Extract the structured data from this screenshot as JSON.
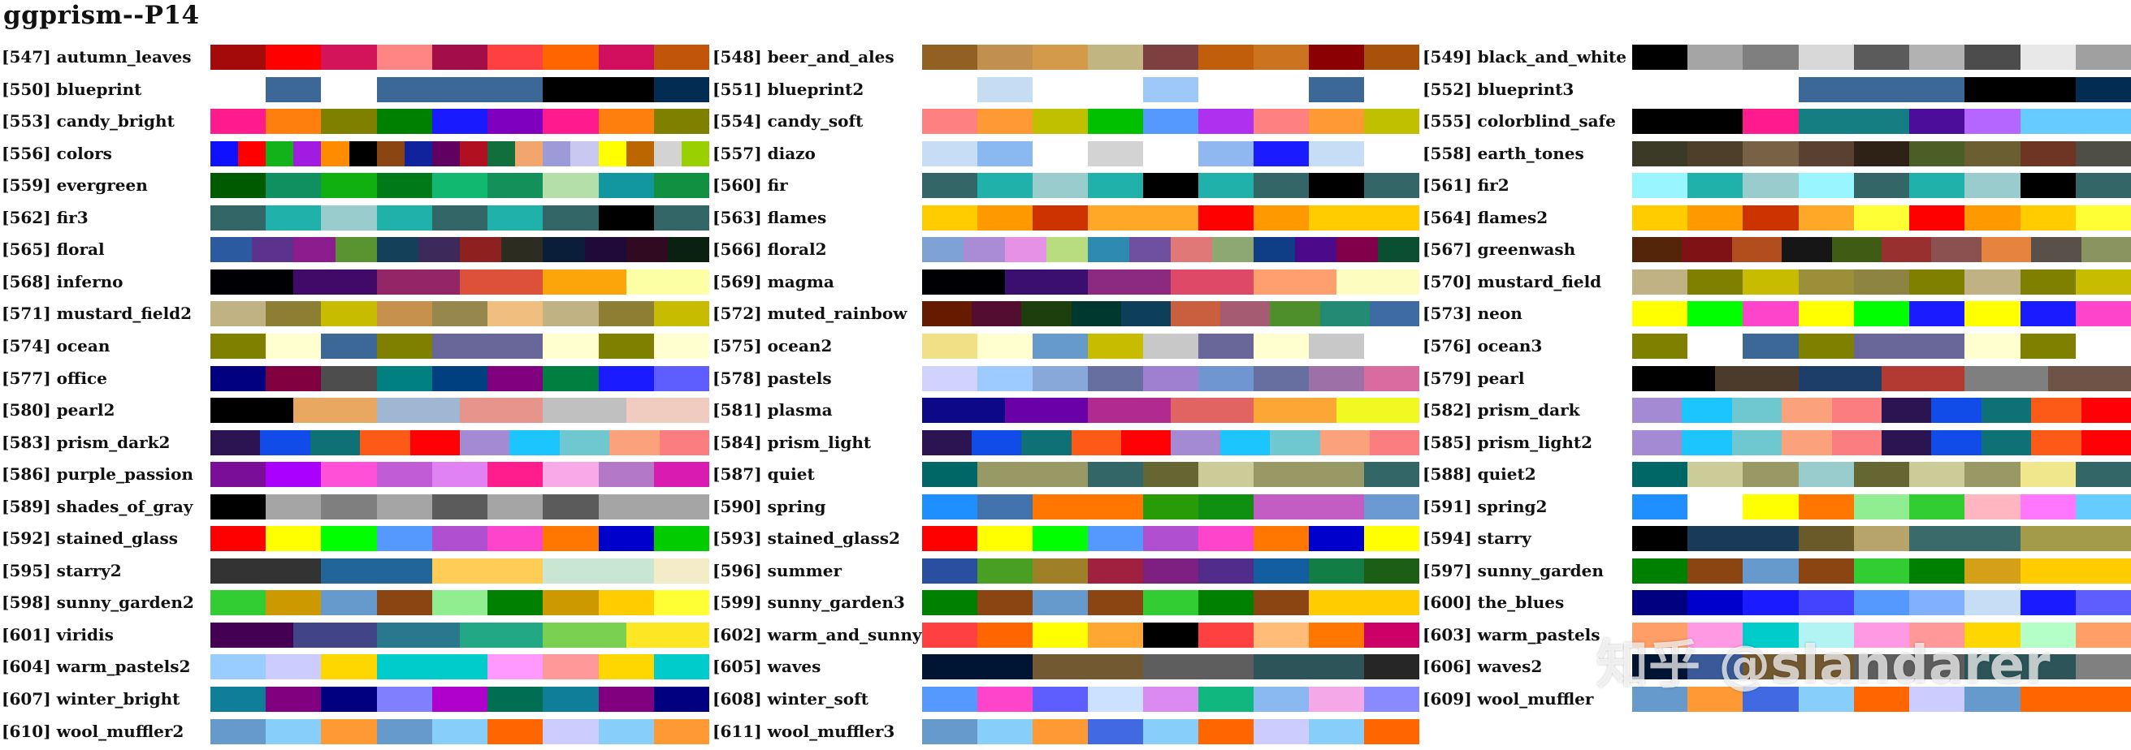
{
  "title": "ggprism--P14",
  "watermark": "知乎 @slandarer",
  "palettes": [
    {
      "label": "[547] autumn_leaves",
      "colors": [
        "#A50A0A",
        "#FF0000",
        "#D4145A",
        "#FF8484",
        "#A30D48",
        "#FF4040",
        "#FF6600",
        "#D10F5E",
        "#C1560B"
      ]
    },
    {
      "label": "[548] beer_and_ales",
      "colors": [
        "#936024",
        "#C1904E",
        "#D39A4A",
        "#C1B682",
        "#7D3F3F",
        "#C05E0B",
        "#CC7320",
        "#8B0000",
        "#A8510B"
      ]
    },
    {
      "label": "[549] black_and_white",
      "colors": [
        "#000000",
        "#A5A5A5",
        "#7F7F7F",
        "#D8D8D8",
        "#5B5B5B",
        "#B2B2B2",
        "#4C4C4C",
        "#E8E8E8",
        "#A0A0A0"
      ]
    },
    {
      "label": "[550] blueprint",
      "colors": [
        "#FFFFFF",
        "#3C6898",
        "#FFFFFF",
        "#3C6898",
        "#3C6898",
        "#3C6898",
        "#000000",
        "#000000",
        "#032C52"
      ]
    },
    {
      "label": "[551] blueprint2",
      "colors": [
        "#FFFFFF",
        "#C5DCF3",
        "#FFFFFF",
        "#FFFFFF",
        "#9EC8F8",
        "#FFFFFF",
        "#FFFFFF",
        "#3C6898",
        "#FFFFFF"
      ]
    },
    {
      "label": "[552] blueprint3",
      "colors": [
        "#FFFFFF",
        "#FFFFFF",
        "#FFFFFF",
        "#3C6898",
        "#3C6898",
        "#3C6898",
        "#000000",
        "#000000",
        "#032C52"
      ]
    },
    {
      "label": "[553] candy_bright",
      "colors": [
        "#FF1B8D",
        "#FF7F0E",
        "#808000",
        "#008000",
        "#1A1AFF",
        "#8000C0",
        "#FF1B8D",
        "#FF7F0E",
        "#808000"
      ]
    },
    {
      "label": "[554] candy_soft",
      "colors": [
        "#FF8080",
        "#FF9933",
        "#C0C000",
        "#00C000",
        "#5599FF",
        "#B030F0",
        "#FF8080",
        "#FF9933",
        "#C0C000"
      ]
    },
    {
      "label": "[555] colorblind_safe",
      "colors": [
        "#000000",
        "#000000",
        "#FF1B8D",
        "#147E82",
        "#147E82",
        "#4C0D9A",
        "#B566FF",
        "#66CCFF",
        "#66CCFF"
      ]
    },
    {
      "label": "[556] colors",
      "colors": [
        "#0F10FF",
        "#FF0000",
        "#11B21A",
        "#A11BE0",
        "#FF8C00",
        "#000000",
        "#8B4513",
        "#10239C",
        "#600060",
        "#B01020",
        "#116E3D",
        "#F2A56C",
        "#9C9BD8",
        "#C8C8F0",
        "#FFFF00",
        "#BB6600",
        "#D3D3D3",
        "#99D000"
      ]
    },
    {
      "label": "[557] diazo",
      "colors": [
        "#C7DDF5",
        "#8AB9F1",
        "#FFFFFF",
        "#D3D3D3",
        "#FFFFFF",
        "#90B8F0",
        "#1B1BFF",
        "#C5DDF5",
        "#FFFFFF"
      ]
    },
    {
      "label": "[558] earth_tones",
      "colors": [
        "#3A3A26",
        "#4E3F2A",
        "#786144",
        "#5A4031",
        "#2E2217",
        "#4B5E26",
        "#6B5E30",
        "#6E3524",
        "#4E4E46"
      ]
    },
    {
      "label": "[559] evergreen",
      "colors": [
        "#005A00",
        "#109060",
        "#10B010",
        "#007A18",
        "#10B870",
        "#14915B",
        "#B5DFA8",
        "#1296A0",
        "#109040"
      ]
    },
    {
      "label": "[560] fir",
      "colors": [
        "#336666",
        "#20B2AA",
        "#99CCCC",
        "#20B2AA",
        "#000000",
        "#20B2AA",
        "#336666",
        "#000000",
        "#336666"
      ]
    },
    {
      "label": "[561] fir2",
      "colors": [
        "#99F5FF",
        "#20B2AA",
        "#99CCCC",
        "#99F5FF",
        "#336666",
        "#20B2AA",
        "#99CCCC",
        "#000000",
        "#336666"
      ]
    },
    {
      "label": "[562] fir3",
      "colors": [
        "#336666",
        "#20B2AA",
        "#99CCCC",
        "#20B2AA",
        "#336666",
        "#20B2AA",
        "#336666",
        "#000000",
        "#336666"
      ]
    },
    {
      "label": "[563] flames",
      "colors": [
        "#FFCC00",
        "#FF9900",
        "#CC3300",
        "#FFA726",
        "#FFA726",
        "#FF0000",
        "#FF9900",
        "#FFCC00",
        "#FFCC00"
      ]
    },
    {
      "label": "[564] flames2",
      "colors": [
        "#FFCC00",
        "#FF9900",
        "#CC3300",
        "#FFA726",
        "#FFFF33",
        "#FF0000",
        "#FF9900",
        "#FFCC00",
        "#FFFF33"
      ]
    },
    {
      "label": "[565] floral",
      "colors": [
        "#2B5AA0",
        "#5C328F",
        "#8D1D8F",
        "#5A9430",
        "#14405A",
        "#3D2A5A",
        "#8F2020",
        "#2C2C20",
        "#0A1E3A",
        "#200A3A",
        "#300A20",
        "#0A2010"
      ]
    },
    {
      "label": "[566] floral2",
      "colors": [
        "#7EA2D4",
        "#A98BD6",
        "#E691E6",
        "#B8DD7F",
        "#2F8AB2",
        "#6F4F9F",
        "#E07878",
        "#8EA872",
        "#103E86",
        "#4A0A8A",
        "#80004A",
        "#0A5030"
      ]
    },
    {
      "label": "[567] greenwash",
      "colors": [
        "#55250A",
        "#7F1214",
        "#B24D1E",
        "#161616",
        "#405B14",
        "#993030",
        "#8B5050",
        "#E6843F",
        "#5A504A",
        "#8A9460"
      ]
    },
    {
      "label": "[568] inferno",
      "colors": [
        "#000004",
        "#420A68",
        "#932667",
        "#DD513A",
        "#FCA50A",
        "#FCFFA4"
      ]
    },
    {
      "label": "[569] magma",
      "colors": [
        "#000004",
        "#3B0F70",
        "#8C2981",
        "#DE4968",
        "#FE9F6D",
        "#FCFDBF"
      ]
    },
    {
      "label": "[570] mustard_field",
      "colors": [
        "#C0B283",
        "#808000",
        "#C8BC00",
        "#9C8F3A",
        "#8C8440",
        "#808000",
        "#C0B283",
        "#808000",
        "#C8BC00"
      ]
    },
    {
      "label": "[571] mustard_field2",
      "colors": [
        "#C0B283",
        "#8C7E33",
        "#C8BC00",
        "#C6914C",
        "#96874D",
        "#F0BF7F",
        "#C0B283",
        "#8C7E33",
        "#C8BC00"
      ]
    },
    {
      "label": "[572] muted_rainbow",
      "colors": [
        "#661A00",
        "#530D30",
        "#1C3F0D",
        "#003830",
        "#0E3F5A",
        "#C95F3E",
        "#A55C73",
        "#4E8F2C",
        "#238B73",
        "#3F6BA5"
      ]
    },
    {
      "label": "[573] neon",
      "colors": [
        "#FFFF00",
        "#00FF00",
        "#FF44CC",
        "#FFFF00",
        "#00FF00",
        "#1B1BFF",
        "#FFFF00",
        "#1B1BFF",
        "#FF44CC"
      ]
    },
    {
      "label": "[574] ocean",
      "colors": [
        "#808000",
        "#FFFFD0",
        "#3C6898",
        "#808000",
        "#696699",
        "#696699",
        "#FFFFD0",
        "#808000",
        "#FFFFD0"
      ]
    },
    {
      "label": "[575] ocean2",
      "colors": [
        "#F2E087",
        "#FFFFD0",
        "#6699CC",
        "#C8BC00",
        "#C8C8C8",
        "#696699",
        "#FFFFD0",
        "#C8C8C8",
        "#FFFFFF"
      ]
    },
    {
      "label": "[576] ocean3",
      "colors": [
        "#808000",
        "#FFFFFF",
        "#3C6898",
        "#808000",
        "#696699",
        "#696699",
        "#FFFFD0",
        "#808000",
        "#FFFFFF"
      ]
    },
    {
      "label": "[577] office",
      "colors": [
        "#000080",
        "#800040",
        "#4D4D4D",
        "#008080",
        "#004080",
        "#800080",
        "#008040",
        "#1B1BFF",
        "#5E5EFF"
      ]
    },
    {
      "label": "[578] pastels",
      "colors": [
        "#D2D2FF",
        "#9ECBFF",
        "#88A8DA",
        "#676FA0",
        "#9F80D0",
        "#6F96D0",
        "#676FA0",
        "#9D70A8",
        "#D96BA0"
      ]
    },
    {
      "label": "[579] pearl",
      "colors": [
        "#000000",
        "#4C3A2B",
        "#1E3E6A",
        "#B33A33",
        "#7F7F7F",
        "#6E5346"
      ]
    },
    {
      "label": "[580] pearl2",
      "colors": [
        "#000000",
        "#E8A862",
        "#9FB7D3",
        "#E7958C",
        "#C0C0C0",
        "#F0CCC0"
      ]
    },
    {
      "label": "[581] plasma",
      "colors": [
        "#0D0887",
        "#6A00A8",
        "#B12A90",
        "#E16462",
        "#FCA636",
        "#F0F921"
      ]
    },
    {
      "label": "[582] prism_dark",
      "colors": [
        "#A48AD3",
        "#1CC5FE",
        "#6FC7CF",
        "#FBA27D",
        "#FB7D80",
        "#2C1453",
        "#114CE8",
        "#0E7175",
        "#FD5917",
        "#FF0005"
      ]
    },
    {
      "label": "[583] prism_dark2",
      "colors": [
        "#2C1453",
        "#114CE8",
        "#0E7175",
        "#FD5917",
        "#FF0005",
        "#A48AD3",
        "#1CC5FE",
        "#6FC7CF",
        "#FBA27D",
        "#FB7D80"
      ]
    },
    {
      "label": "[584] prism_light",
      "colors": [
        "#2C1453",
        "#114CE8",
        "#0E7175",
        "#FD5917",
        "#FF0005",
        "#A48AD3",
        "#1CC5FE",
        "#6FC7CF",
        "#FBA27D",
        "#FB7D80"
      ]
    },
    {
      "label": "[585] prism_light2",
      "colors": [
        "#A48AD3",
        "#1CC5FE",
        "#6FC7CF",
        "#FBA27D",
        "#FB7D80",
        "#2C1453",
        "#114CE8",
        "#0E7175",
        "#FD5917",
        "#FF0005"
      ]
    },
    {
      "label": "[586] purple_passion",
      "colors": [
        "#7B0E99",
        "#AA00FF",
        "#FF50D8",
        "#C15BD6",
        "#E082F2",
        "#FF1C8C",
        "#F9A8E8",
        "#B378C8",
        "#D91BB1"
      ]
    },
    {
      "label": "[587] quiet",
      "colors": [
        "#006666",
        "#999966",
        "#999966",
        "#336666",
        "#666633",
        "#CCCC99",
        "#999966",
        "#999966",
        "#336666"
      ]
    },
    {
      "label": "[588] quiet2",
      "colors": [
        "#006666",
        "#CCCC99",
        "#999966",
        "#99CCCC",
        "#666633",
        "#CCCC99",
        "#999966",
        "#F0E68C",
        "#336666"
      ]
    },
    {
      "label": "[589] shades_of_gray",
      "colors": [
        "#000000",
        "#A5A5A5",
        "#7F7F7F",
        "#A5A5A5",
        "#5B5B5B",
        "#A5A5A5",
        "#5B5B5B",
        "#A5A5A5",
        "#A5A5A5"
      ]
    },
    {
      "label": "[590] spring",
      "colors": [
        "#1F8FFF",
        "#4273AD",
        "#FF7700",
        "#FF7700",
        "#289C08",
        "#109010",
        "#C35CC3",
        "#C35CC3",
        "#6B9AD2"
      ]
    },
    {
      "label": "[591] spring2",
      "colors": [
        "#1F8FFF",
        "#FFFFFF",
        "#FFFF00",
        "#FF7700",
        "#90EE90",
        "#32CD32",
        "#FFB6C1",
        "#FF77FF",
        "#66CCFF"
      ]
    },
    {
      "label": "[592] stained_glass",
      "colors": [
        "#FF0000",
        "#FFFF00",
        "#00FF00",
        "#5599FF",
        "#B050D0",
        "#FF44CC",
        "#FF7700",
        "#0000CC",
        "#00CC00"
      ]
    },
    {
      "label": "[593] stained_glass2",
      "colors": [
        "#FF0000",
        "#FFFF00",
        "#00FF00",
        "#5599FF",
        "#B050D0",
        "#FF44CC",
        "#FF7700",
        "#0000CC",
        "#FFFF00"
      ]
    },
    {
      "label": "[594] starry",
      "colors": [
        "#000000",
        "#1A3A5A",
        "#1A3A5A",
        "#6A5A2A",
        "#B7A46A",
        "#3A6A6A",
        "#3A6A6A",
        "#A39A4A",
        "#A39A4A"
      ]
    },
    {
      "label": "[595] starry2",
      "colors": [
        "#333333",
        "#333333",
        "#226699",
        "#226699",
        "#FFCC55",
        "#FFCC55",
        "#C8E6D2",
        "#C8E6D2",
        "#F4EBC8"
      ]
    },
    {
      "label": "[596] summer",
      "colors": [
        "#2A4FA0",
        "#489F23",
        "#A07F29",
        "#A02040",
        "#7E2081",
        "#512C8A",
        "#125EA0",
        "#127D45",
        "#1D5E16"
      ]
    },
    {
      "label": "[597] sunny_garden",
      "colors": [
        "#008000",
        "#8B4513",
        "#6699CC",
        "#8B4513",
        "#32CD32",
        "#008000",
        "#D4A017",
        "#FFCC00",
        "#FFCC00"
      ]
    },
    {
      "label": "[598] sunny_garden2",
      "colors": [
        "#32CD32",
        "#CC9900",
        "#6699CC",
        "#8B4513",
        "#90EE90",
        "#008000",
        "#CC9900",
        "#FFCC00",
        "#FFFF33"
      ]
    },
    {
      "label": "[599] sunny_garden3",
      "colors": [
        "#008000",
        "#8B4513",
        "#6699CC",
        "#8B4513",
        "#32CD32",
        "#008000",
        "#8B4513",
        "#FFCC00",
        "#FFCC00"
      ]
    },
    {
      "label": "[600] the_blues",
      "colors": [
        "#000080",
        "#0000CC",
        "#1B1BFF",
        "#4444FF",
        "#5599FF",
        "#80B0FF",
        "#C5DDF5",
        "#1B1BFF",
        "#5E5EFF"
      ]
    },
    {
      "label": "[601] viridis",
      "colors": [
        "#440154",
        "#414487",
        "#2A788E",
        "#22A884",
        "#7AD151",
        "#FDE725"
      ]
    },
    {
      "label": "[602] warm_and_sunny",
      "colors": [
        "#FF4040",
        "#FF6600",
        "#FFFF00",
        "#FFA733",
        "#000000",
        "#FF4040",
        "#FFBB77",
        "#FF7700",
        "#CC0066"
      ]
    },
    {
      "label": "[603] warm_pastels",
      "colors": [
        "#FF9E66",
        "#FF99E4",
        "#00CCCC",
        "#B2F4F4",
        "#FF99E4",
        "#FF9999",
        "#FFD700",
        "#B4FFC8",
        "#FF9E66"
      ]
    },
    {
      "label": "[604] warm_pastels2",
      "colors": [
        "#99CCFF",
        "#CCCCFF",
        "#FFD700",
        "#00CCCC",
        "#00CCCC",
        "#FF99FF",
        "#FF9999",
        "#FFD700",
        "#00CCCC"
      ]
    },
    {
      "label": "[605] waves",
      "colors": [
        "#001533",
        "#001533",
        "#735931",
        "#735931",
        "#5E5E5E",
        "#5E5E5E",
        "#2C5459",
        "#2C5459",
        "#262626"
      ]
    },
    {
      "label": "[606] waves2",
      "colors": [
        "#001533",
        "#3B5998",
        "#735931",
        "#735931",
        "#5E5E5E",
        "#5E5E5E",
        "#2C5459",
        "#2C5459",
        "#808080"
      ]
    },
    {
      "label": "[607] winter_bright",
      "colors": [
        "#0E7E99",
        "#800080",
        "#000080",
        "#8080FF",
        "#B000CC",
        "#006E50",
        "#0E7E99",
        "#800080",
        "#000080"
      ]
    },
    {
      "label": "[608] winter_soft",
      "colors": [
        "#5599FF",
        "#FF44CC",
        "#5E5EFF",
        "#CCE0FF",
        "#DA8AF0",
        "#10B880",
        "#8AB9F1",
        "#F5A8E8",
        "#8A8AFF"
      ]
    },
    {
      "label": "[609] wool_muffler",
      "colors": [
        "#6699CC",
        "#FF9933",
        "#4169E1",
        "#87CEFA",
        "#FF6600",
        "#CCCCFF",
        "#6699CC",
        "#FF6600",
        "#FF6600"
      ]
    },
    {
      "label": "[610] wool_muffler2",
      "colors": [
        "#6699CC",
        "#87CEFA",
        "#FF9933",
        "#6699CC",
        "#87CEFA",
        "#FF6600",
        "#CCCCFF",
        "#87CEFA",
        "#FF9933"
      ]
    },
    {
      "label": "[611] wool_muffler3",
      "colors": [
        "#6699CC",
        "#87CEFA",
        "#FF9933",
        "#4169E1",
        "#87CEFA",
        "#FF6600",
        "#CCCCFF",
        "#87CEFA",
        "#FF6600"
      ]
    }
  ]
}
